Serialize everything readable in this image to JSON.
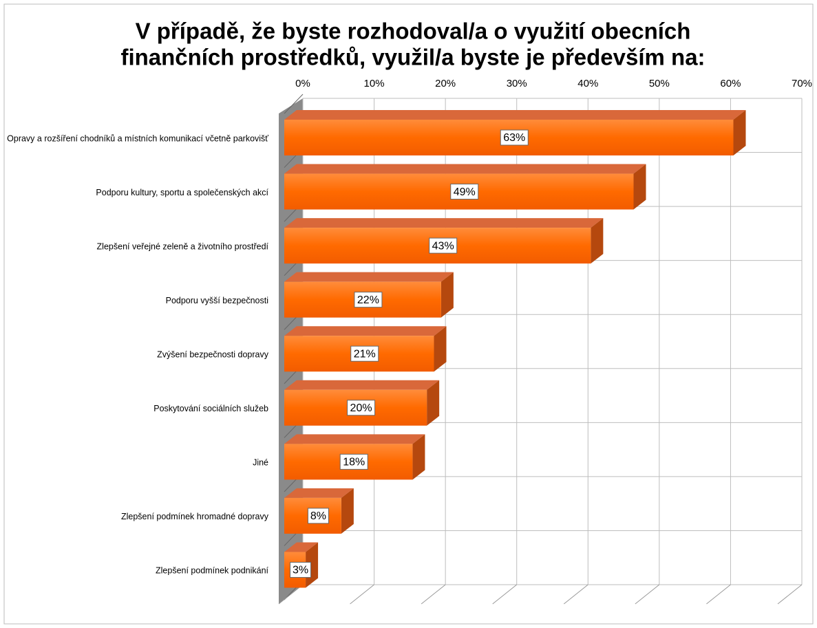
{
  "chart_data": {
    "type": "bar3d_horizontal",
    "title": [
      "V případě, že byste rozhodoval/a o využití obecních",
      "finančních prostředků, využil/a byste je především na:"
    ],
    "categories": [
      "Opravy a rozšíření chodníků a místních komunikací včetně parkovišť",
      "Podporu kultury, sportu a společenských akcí",
      "Zlepšení veřejné zeleně a životního prostředí",
      "Podporu vyšší bezpečnosti",
      "Zvýšení bezpečnosti dopravy",
      "Poskytování sociálních služeb",
      "Jiné",
      "Zlepšení podmínek hromadné dopravy",
      "Zlepšení podmínek podnikání"
    ],
    "values": [
      63,
      49,
      43,
      22,
      21,
      20,
      18,
      8,
      3
    ],
    "value_labels": [
      "63%",
      "49%",
      "43%",
      "22%",
      "21%",
      "20%",
      "18%",
      "8%",
      "3%"
    ],
    "color": "#ff6a00",
    "xlim": [
      0,
      70
    ],
    "xticks": [
      {
        "value": 0,
        "label": "0%"
      },
      {
        "value": 10,
        "label": "10%"
      },
      {
        "value": 20,
        "label": "20%"
      },
      {
        "value": 30,
        "label": "30%"
      },
      {
        "value": 40,
        "label": "40%"
      },
      {
        "value": 50,
        "label": "50%"
      },
      {
        "value": 60,
        "label": "60%"
      },
      {
        "value": 70,
        "label": "70%"
      }
    ],
    "grid": true
  }
}
